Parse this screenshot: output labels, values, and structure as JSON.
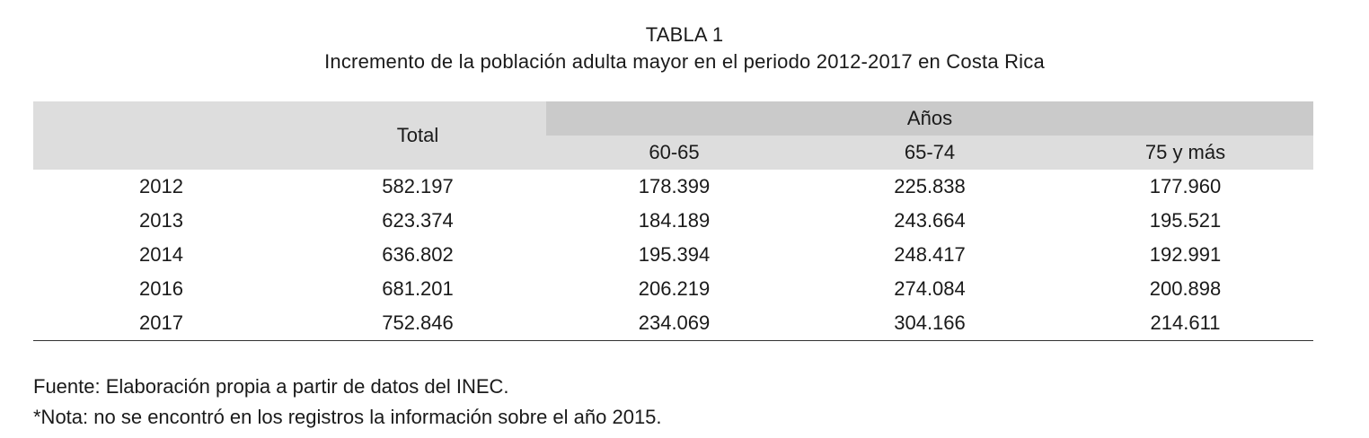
{
  "title": {
    "label": "TABLA 1",
    "caption": "Incremento de la población adulta mayor en el periodo 2012-2017 en Costa Rica"
  },
  "table": {
    "headers": {
      "total": "Total",
      "group": "Años",
      "sub": [
        "60-65",
        "65-74",
        "75 y más"
      ]
    },
    "rows": [
      [
        "2012",
        "582.197",
        "178.399",
        "225.838",
        "177.960"
      ],
      [
        "2013",
        "623.374",
        "184.189",
        "243.664",
        "195.521"
      ],
      [
        "2014",
        "636.802",
        "195.394",
        "248.417",
        "192.991"
      ],
      [
        "2016",
        "681.201",
        "206.219",
        "274.084",
        "200.898"
      ],
      [
        "2017",
        "752.846",
        "234.069",
        "304.166",
        "214.611"
      ]
    ]
  },
  "notes": {
    "source": "Fuente: Elaboración propia a partir de datos del INEC.",
    "note": "*Nota: no se encontró en los registros la información sobre el año 2015."
  }
}
